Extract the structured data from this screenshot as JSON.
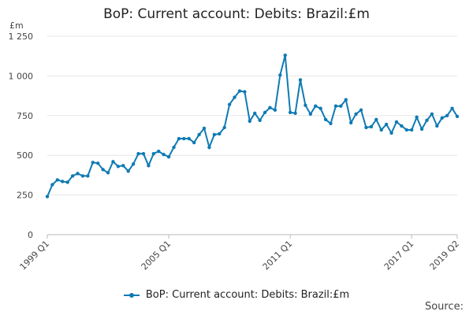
{
  "chart_data": {
    "type": "line",
    "title": "BoP: Current account: Debits: Brazil:£m",
    "ylabel": "£m",
    "xlabel": "",
    "ylim": [
      0,
      1250
    ],
    "yticks": [
      0,
      250,
      500,
      750,
      1000,
      1250
    ],
    "ytick_labels": [
      "0",
      "250",
      "500",
      "750",
      "1 000",
      "1 250"
    ],
    "xtick_labels": [
      "1999 Q1",
      "2005 Q1",
      "2011 Q1",
      "2017 Q1",
      "2019 Q2"
    ],
    "xtick_index": [
      0,
      24,
      48,
      72,
      81
    ],
    "grid": true,
    "legend_position": "bottom",
    "color": "#0f7ab4",
    "series": [
      {
        "name": "BoP: Current account: Debits: Brazil:£m",
        "values": [
          240,
          315,
          345,
          335,
          330,
          370,
          385,
          370,
          370,
          455,
          450,
          410,
          390,
          460,
          430,
          435,
          400,
          445,
          510,
          510,
          435,
          510,
          525,
          505,
          490,
          550,
          605,
          605,
          605,
          580,
          630,
          670,
          550,
          630,
          635,
          675,
          820,
          865,
          905,
          900,
          715,
          765,
          720,
          770,
          800,
          785,
          1005,
          1130,
          770,
          765,
          975,
          815,
          760,
          810,
          795,
          725,
          700,
          810,
          810,
          850,
          705,
          760,
          785,
          675,
          680,
          725,
          660,
          695,
          640,
          710,
          685,
          660,
          660,
          740,
          665,
          720,
          760,
          685,
          735,
          750,
          795,
          745
        ]
      }
    ]
  },
  "legend": {
    "label": "BoP: Current account: Debits: Brazil:£m"
  },
  "footer": {
    "source_label": "Source:"
  }
}
